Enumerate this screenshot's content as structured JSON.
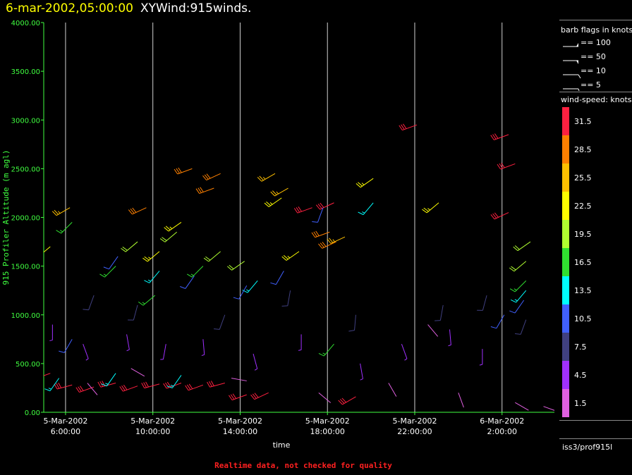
{
  "title": {
    "timestamp": "6-mar-2002,05:00:00",
    "name": "XYWind:915winds."
  },
  "legend": {
    "barb_title": "barb flags in knots",
    "barbs": [
      {
        "label": "== 100",
        "kind": "100"
      },
      {
        "label": "== 50",
        "kind": "50"
      },
      {
        "label": "== 10",
        "kind": "10"
      },
      {
        "label": "== 5",
        "kind": "5"
      }
    ],
    "speed_title": "wind-speed: knots",
    "bins": [
      {
        "label": "31.5",
        "color": "#ff2040"
      },
      {
        "label": "28.5",
        "color": "#ff8000"
      },
      {
        "label": "25.5",
        "color": "#ffc000"
      },
      {
        "label": "22.5",
        "color": "#ffff00"
      },
      {
        "label": "19.5",
        "color": "#b0ff30"
      },
      {
        "label": "16.5",
        "color": "#30e030"
      },
      {
        "label": "13.5",
        "color": "#00ffff"
      },
      {
        "label": "10.5",
        "color": "#4060ff"
      },
      {
        "label": "7.5",
        "color": "#404080"
      },
      {
        "label": "4.5",
        "color": "#a030ff"
      },
      {
        "label": "1.5",
        "color": "#e060e0"
      }
    ]
  },
  "source": "iss3/prof915l",
  "footer": "Realtime data, not checked for quality",
  "chart_data": {
    "type": "scatter",
    "title": "6-mar-2002,05:00:00 XYWind:915winds.",
    "ylabel": "915 Profiler Altitude (m agl)",
    "xlabel": "time",
    "ylim": [
      0,
      4000
    ],
    "yticks": [
      "0.00",
      "500.00",
      "1000.00",
      "1500.00",
      "2000.00",
      "2500.00",
      "3000.00",
      "3500.00",
      "4000.00"
    ],
    "xticks": [
      {
        "date": "5-Mar-2002",
        "time": "6:00:00",
        "hours": 6
      },
      {
        "date": "5-Mar-2002",
        "time": "10:00:00",
        "hours": 10
      },
      {
        "date": "5-Mar-2002",
        "time": "14:00:00",
        "hours": 14
      },
      {
        "date": "5-Mar-2002",
        "time": "18:00:00",
        "hours": 18
      },
      {
        "date": "5-Mar-2002",
        "time": "22:00:00",
        "hours": 22
      },
      {
        "date": "6-Mar-2002",
        "time": "2:00:00",
        "hours": 26
      }
    ],
    "xlim_hours": [
      5.0,
      28.4
    ],
    "grid": "vertical lines at x ticks",
    "legend_placement": "right",
    "series": [
      {
        "speed_knots": 31.5,
        "points": [
          {
            "t": 5.3,
            "z": 400,
            "dir": 250
          },
          {
            "t": 6.3,
            "z": 280,
            "dir": 255
          },
          {
            "t": 7.3,
            "z": 260,
            "dir": 250
          },
          {
            "t": 8.3,
            "z": 300,
            "dir": 255
          },
          {
            "t": 9.3,
            "z": 270,
            "dir": 250
          },
          {
            "t": 10.3,
            "z": 290,
            "dir": 255
          },
          {
            "t": 11.3,
            "z": 300,
            "dir": 250
          },
          {
            "t": 12.3,
            "z": 280,
            "dir": 250
          },
          {
            "t": 13.3,
            "z": 300,
            "dir": 255
          },
          {
            "t": 14.3,
            "z": 180,
            "dir": 250
          },
          {
            "t": 15.3,
            "z": 200,
            "dir": 245
          },
          {
            "t": 17.3,
            "z": 2100,
            "dir": 250
          },
          {
            "t": 18.3,
            "z": 2150,
            "dir": 245
          },
          {
            "t": 19.3,
            "z": 160,
            "dir": 240
          },
          {
            "t": 22.1,
            "z": 2950,
            "dir": 250
          },
          {
            "t": 26.3,
            "z": 2850,
            "dir": 250
          },
          {
            "t": 26.6,
            "z": 2550,
            "dir": 250
          },
          {
            "t": 26.3,
            "z": 2050,
            "dir": 245
          }
        ]
      },
      {
        "speed_knots": 28.5,
        "points": [
          {
            "t": 11.8,
            "z": 2500,
            "dir": 250
          },
          {
            "t": 12.8,
            "z": 2300,
            "dir": 250
          },
          {
            "t": 13.1,
            "z": 2450,
            "dir": 245
          },
          {
            "t": 18.1,
            "z": 1850,
            "dir": 250
          },
          {
            "t": 18.4,
            "z": 1750,
            "dir": 245
          },
          {
            "t": 9.7,
            "z": 2100,
            "dir": 245
          }
        ]
      },
      {
        "speed_knots": 25.5,
        "points": [
          {
            "t": 15.6,
            "z": 2450,
            "dir": 240
          },
          {
            "t": 16.2,
            "z": 2300,
            "dir": 240
          },
          {
            "t": 18.8,
            "z": 1800,
            "dir": 245
          },
          {
            "t": 6.2,
            "z": 2100,
            "dir": 240
          }
        ]
      },
      {
        "speed_knots": 22.5,
        "points": [
          {
            "t": 11.3,
            "z": 1950,
            "dir": 235
          },
          {
            "t": 15.9,
            "z": 2200,
            "dir": 235
          },
          {
            "t": 16.7,
            "z": 1650,
            "dir": 235
          },
          {
            "t": 20.1,
            "z": 2400,
            "dir": 235
          },
          {
            "t": 23.1,
            "z": 2150,
            "dir": 230
          },
          {
            "t": 5.3,
            "z": 1700,
            "dir": 230
          },
          {
            "t": 10.3,
            "z": 1650,
            "dir": 230
          }
        ]
      },
      {
        "speed_knots": 19.5,
        "points": [
          {
            "t": 9.3,
            "z": 1750,
            "dir": 230
          },
          {
            "t": 11.1,
            "z": 1850,
            "dir": 230
          },
          {
            "t": 13.1,
            "z": 1650,
            "dir": 230
          },
          {
            "t": 14.2,
            "z": 1550,
            "dir": 235
          },
          {
            "t": 27.3,
            "z": 1750,
            "dir": 235
          },
          {
            "t": 27.1,
            "z": 1550,
            "dir": 230
          }
        ]
      },
      {
        "speed_knots": 16.5,
        "points": [
          {
            "t": 8.3,
            "z": 1500,
            "dir": 225
          },
          {
            "t": 10.1,
            "z": 1200,
            "dir": 230
          },
          {
            "t": 12.3,
            "z": 1500,
            "dir": 225
          },
          {
            "t": 27.1,
            "z": 1350,
            "dir": 225
          },
          {
            "t": 18.3,
            "z": 700,
            "dir": 220
          },
          {
            "t": 6.3,
            "z": 1950,
            "dir": 225
          }
        ]
      },
      {
        "speed_knots": 13.5,
        "points": [
          {
            "t": 10.3,
            "z": 1450,
            "dir": 220
          },
          {
            "t": 20.1,
            "z": 2150,
            "dir": 220
          },
          {
            "t": 27.1,
            "z": 1250,
            "dir": 220
          },
          {
            "t": 14.8,
            "z": 1350,
            "dir": 220
          },
          {
            "t": 8.3,
            "z": 400,
            "dir": 215
          },
          {
            "t": 11.3,
            "z": 380,
            "dir": 215
          },
          {
            "t": 5.7,
            "z": 350,
            "dir": 215
          }
        ]
      },
      {
        "speed_knots": 10.5,
        "points": [
          {
            "t": 8.4,
            "z": 1600,
            "dir": 215
          },
          {
            "t": 11.9,
            "z": 1400,
            "dir": 215
          },
          {
            "t": 14.3,
            "z": 1300,
            "dir": 210
          },
          {
            "t": 16.0,
            "z": 1450,
            "dir": 210
          },
          {
            "t": 17.8,
            "z": 2100,
            "dir": 200
          },
          {
            "t": 27.0,
            "z": 1150,
            "dir": 215
          },
          {
            "t": 6.3,
            "z": 750,
            "dir": 210
          },
          {
            "t": 26.1,
            "z": 1000,
            "dir": 210
          }
        ]
      },
      {
        "speed_knots": 7.5,
        "points": [
          {
            "t": 7.3,
            "z": 1200,
            "dir": 200
          },
          {
            "t": 9.3,
            "z": 1100,
            "dir": 195
          },
          {
            "t": 13.3,
            "z": 1000,
            "dir": 200
          },
          {
            "t": 16.3,
            "z": 1250,
            "dir": 190
          },
          {
            "t": 19.3,
            "z": 1000,
            "dir": 185
          },
          {
            "t": 23.3,
            "z": 1100,
            "dir": 190
          },
          {
            "t": 25.3,
            "z": 1200,
            "dir": 195
          },
          {
            "t": 27.1,
            "z": 950,
            "dir": 200
          }
        ]
      },
      {
        "speed_knots": 4.5,
        "points": [
          {
            "t": 5.4,
            "z": 900,
            "dir": 180
          },
          {
            "t": 6.8,
            "z": 700,
            "dir": 160
          },
          {
            "t": 8.8,
            "z": 800,
            "dir": 170
          },
          {
            "t": 10.6,
            "z": 700,
            "dir": 190
          },
          {
            "t": 12.3,
            "z": 750,
            "dir": 175
          },
          {
            "t": 14.6,
            "z": 600,
            "dir": 165
          },
          {
            "t": 16.8,
            "z": 800,
            "dir": 180
          },
          {
            "t": 19.5,
            "z": 500,
            "dir": 170
          },
          {
            "t": 21.4,
            "z": 700,
            "dir": 160
          },
          {
            "t": 23.6,
            "z": 850,
            "dir": 175
          },
          {
            "t": 25.1,
            "z": 650,
            "dir": 180
          }
        ]
      },
      {
        "speed_knots": 1.5,
        "points": [
          {
            "t": 7.0,
            "z": 300,
            "dir": 140
          },
          {
            "t": 9.0,
            "z": 450,
            "dir": 120
          },
          {
            "t": 13.6,
            "z": 350,
            "dir": 100
          },
          {
            "t": 17.6,
            "z": 200,
            "dir": 130
          },
          {
            "t": 20.8,
            "z": 300,
            "dir": 150
          },
          {
            "t": 22.6,
            "z": 900,
            "dir": 140
          },
          {
            "t": 24.0,
            "z": 200,
            "dir": 160
          },
          {
            "t": 26.6,
            "z": 100,
            "dir": 120
          },
          {
            "t": 27.9,
            "z": 60,
            "dir": 110
          }
        ]
      }
    ]
  }
}
